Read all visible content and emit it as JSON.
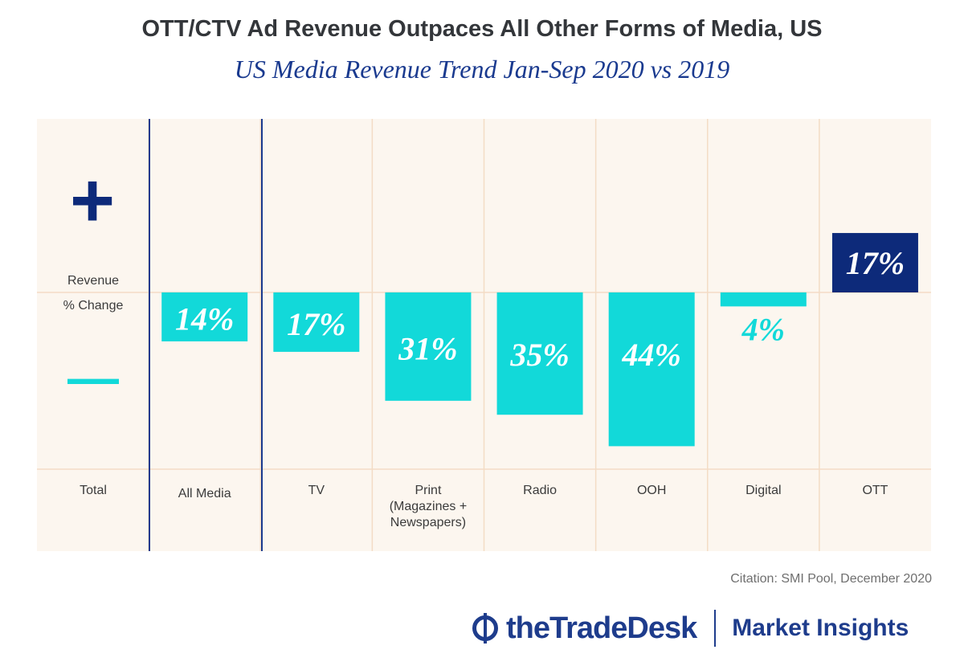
{
  "title": "OTT/CTV Ad Revenue Outpaces All Other Forms of Media, US",
  "subtitle": "US Media Revenue Trend Jan-Sep 2020 vs 2019",
  "legend": {
    "plus_symbol": "+",
    "minus_symbol": "—",
    "axis_label_line1": "Revenue",
    "axis_label_line2": "% Change",
    "total_label": "Total"
  },
  "colors": {
    "background": "#fcf6ef",
    "gridline": "#f3dcc5",
    "negative_bar": "#12d9d9",
    "positive_bar": "#0d2a7a",
    "separator": "#1a3a8f",
    "label_text": "#3b3b3b"
  },
  "chart_data": {
    "type": "bar",
    "categories": [
      "All Media",
      "TV",
      "Print (Magazines + Newspapers)",
      "Radio",
      "OOH",
      "Digital",
      "OTT"
    ],
    "category_label_lines": [
      [
        "All Media"
      ],
      [
        "TV"
      ],
      [
        "Print",
        "(Magazines +",
        "Newspapers)"
      ],
      [
        "Radio"
      ],
      [
        "OOH"
      ],
      [
        "Digital"
      ],
      [
        "OTT"
      ]
    ],
    "values": [
      -14,
      -17,
      -31,
      -35,
      -44,
      -4,
      17
    ],
    "data_labels": [
      "14%",
      "17%",
      "31%",
      "35%",
      "44%",
      "4%",
      "17%"
    ],
    "ylim": [
      -44,
      17
    ],
    "grid": true
  },
  "citation": "Citation: SMI Pool, December 2020",
  "footer": {
    "brand": "theTradeDesk",
    "tagline": "Market Insights"
  }
}
